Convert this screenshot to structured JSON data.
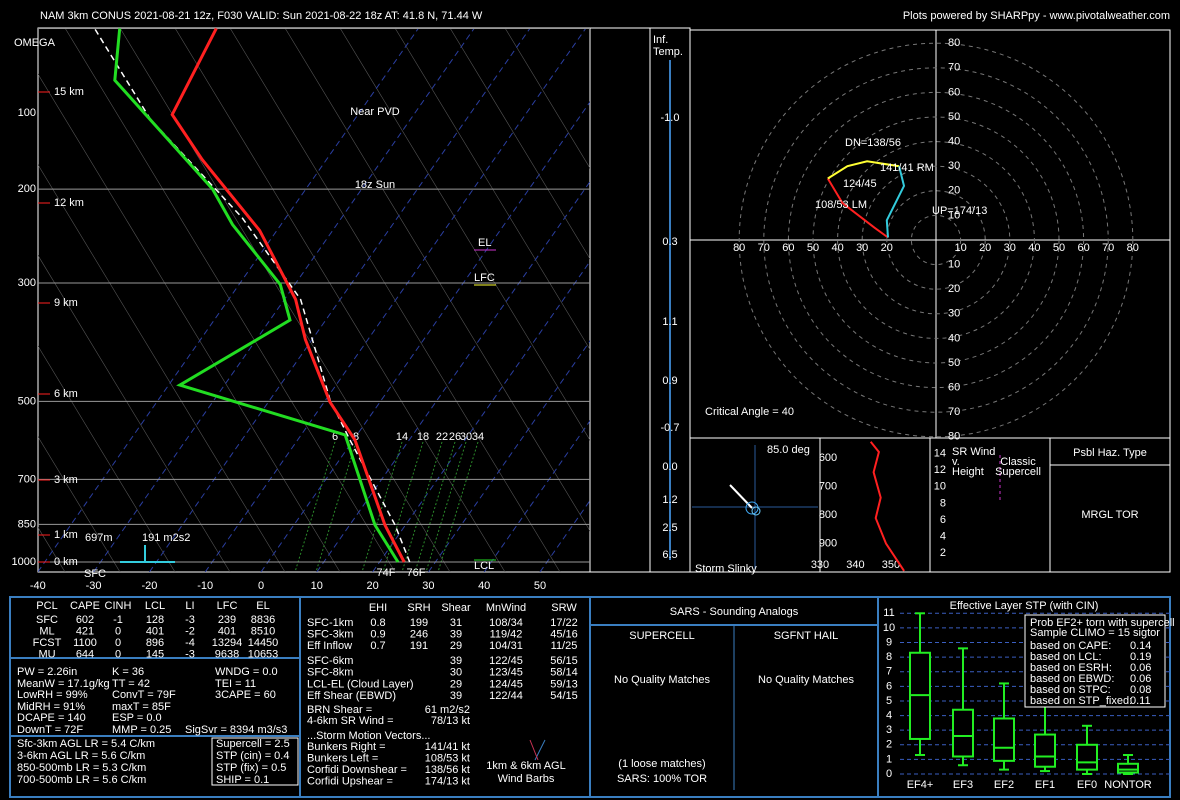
{
  "header": {
    "title": "NAM 3km CONUS 2021-08-21 12z, F030  VALID: Sun 2021-08-22 18z  AT: 41.8 N, 71.44 W",
    "credit": "Plots powered by SHARPpy - www.pivotalweather.com"
  },
  "skewt": {
    "overlay": [
      "Near PVD",
      "18z Sun"
    ],
    "plim": [
      100,
      1000
    ],
    "pressure_ticks": [
      100,
      200,
      300,
      500,
      700,
      850,
      1000
    ],
    "height_labels": [
      "15 km",
      "12 km",
      "9 km",
      "6 km",
      "3 km",
      "1 km",
      "0 km"
    ],
    "temp_ticks": [
      -40,
      -30,
      -20,
      -10,
      0,
      10,
      20,
      30,
      40,
      50
    ],
    "omega": "OMEGA",
    "sfc": "SFC",
    "el": "EL",
    "lfc": "LFC",
    "lcl": "LCL",
    "esrh_depth": "697m",
    "esrh": "191 m2s2",
    "sfc_td": "74F",
    "sfc_t": "76F",
    "mixing_ratio_labels": [
      "6",
      "8",
      "14",
      "18",
      "22",
      "26",
      "30",
      "34"
    ],
    "temperature": {
      "color": "#ff2020",
      "p": [
        1000,
        852,
        591,
        501,
        383,
        322,
        239,
        176,
        145,
        100
      ],
      "t": [
        24.4,
        16.3,
        0.3,
        -9.0,
        -21.2,
        -28.0,
        -43.1,
        -62.3,
        -73.3,
        -76.2
      ]
    },
    "dewpoint": {
      "color": "#22dd22",
      "p": [
        1000,
        852,
        578,
        466,
        352,
        302,
        233,
        200,
        125,
        100
      ],
      "t": [
        23.3,
        14.5,
        -2.1,
        -38.0,
        -26.4,
        -32.6,
        -48.7,
        -56.7,
        -87.9,
        -93.5
      ]
    },
    "parcel": {
      "color": "#ffffff",
      "p": [
        1000,
        852,
        591,
        497,
        322,
        226,
        148,
        100
      ],
      "t": [
        25.4,
        18.1,
        -0.6,
        -9.2,
        -27.1,
        -47.9,
        -76.6,
        -98.0
      ]
    }
  },
  "inferred_temp": {
    "title": [
      "Inf.",
      "Temp."
    ],
    "labels": [
      "-1.0",
      "0.3",
      "1.1",
      "0.9",
      "-0.7",
      "0.0",
      "1.2",
      "2.5",
      "6.5"
    ]
  },
  "hodograph": {
    "ticks": [
      10,
      20,
      30,
      40,
      50,
      60,
      70,
      80
    ],
    "traces": [
      {
        "color": "#ff2020",
        "u": [
          -19.5,
          -25,
          -38,
          -44
        ],
        "v": [
          1,
          5,
          15,
          25
        ]
      },
      {
        "color": "#ffff33",
        "u": [
          -44,
          -36,
          -28,
          -15
        ],
        "v": [
          25,
          30,
          32,
          30
        ]
      },
      {
        "color": "#33ccdd",
        "u": [
          -15,
          -13,
          -20,
          -19.5
        ],
        "v": [
          30,
          22,
          8,
          1
        ]
      }
    ],
    "labels": [
      "DN=138/56",
      "141/41 RM",
      "124/45",
      "108/53 LM",
      "UP=174/13"
    ],
    "critical_angle": "Critical Angle = 40"
  },
  "storm_slinky": {
    "angle": "85.0 deg",
    "title": "Storm Slinky"
  },
  "theta_e": {
    "plim": [
      530,
      1000
    ],
    "xlim": [
      330,
      361
    ],
    "p_ticks": [
      600,
      700,
      800,
      900
    ],
    "x_ticks": [
      330,
      340,
      350
    ],
    "color": "#ff2020",
    "p": [
      543,
      579,
      650,
      739,
      811,
      900,
      996
    ],
    "values": [
      344.3,
      346.6,
      345.1,
      347.1,
      345.7,
      348.6,
      353.7
    ]
  },
  "sr_wind": {
    "title": [
      "SR Wind",
      "v.",
      "Height"
    ],
    "overlay": [
      "Classic",
      "Supercell"
    ],
    "ticks": [
      2,
      4,
      6,
      8,
      10,
      12,
      14
    ]
  },
  "hazard": {
    "title": "Psbl Haz. Type",
    "value": "MRGL TOR"
  },
  "parcel_table": {
    "header": [
      "PCL",
      "CAPE",
      "CINH",
      "LCL",
      "LI",
      "LFC",
      "EL"
    ],
    "rows": [
      [
        "SFC",
        "602",
        "-1",
        "128",
        "-3",
        "239",
        "8836"
      ],
      [
        "ML",
        "421",
        "0",
        "401",
        "-2",
        "401",
        "8510"
      ],
      [
        "FCST",
        "1100",
        "0",
        "896",
        "-4",
        "13294",
        "14450"
      ],
      [
        "MU",
        "644",
        "0",
        "145",
        "-3",
        "9638",
        "10653"
      ]
    ]
  },
  "indices": {
    "col1": [
      "PW = 2.26in",
      "MeanW = 17.1g/kg",
      "LowRH = 99%",
      "MidRH = 91%",
      "DCAPE = 140",
      "DownT = 72F"
    ],
    "col2": [
      "K = 36",
      "TT = 42",
      "ConvT = 79F",
      "maxT = 85F",
      "ESP = 0.0",
      "MMP = 0.25"
    ],
    "col3": [
      "WNDG = 0.0",
      "TEI = 11",
      "3CAPE = 60",
      "SigSvr = 8394 m3/s3"
    ]
  },
  "lapse_rates": [
    "Sfc-3km AGL LR = 5.4 C/km",
    "3-6km AGL LR = 5.6 C/km",
    "850-500mb LR = 5.3 C/km",
    "700-500mb LR = 5.6 C/km"
  ],
  "composites": [
    {
      "text": "Supercell = 2.5",
      "color": "#ffffff"
    },
    {
      "text": "STP (cin) = 0.4",
      "color": "#b8702e"
    },
    {
      "text": "STP (fix) = 0.5",
      "color": "#d08a2e"
    },
    {
      "text": "SHIP = 0.1",
      "color": "#8e44ad"
    }
  ],
  "shear_table": {
    "header": [
      "EHI",
      "SRH",
      "Shear",
      "MnWind",
      "SRW"
    ],
    "rows": [
      [
        "SFC-1km",
        "0.8",
        "199",
        "31",
        "108/34",
        "17/22"
      ],
      [
        "SFC-3km",
        "0.9",
        "246",
        "39",
        "119/42",
        "45/16"
      ],
      [
        "Eff Inflow",
        "0.7",
        "191",
        "29",
        "104/31",
        "11/25"
      ]
    ],
    "rows2": [
      [
        "SFC-6km",
        "39",
        "122/45",
        "56/15"
      ],
      [
        "SFC-8km",
        "30",
        "123/45",
        "58/14"
      ],
      [
        "LCL-EL (Cloud Layer)",
        "29",
        "124/45",
        "59/13"
      ],
      [
        "Eff Shear (EBWD)",
        "39",
        "122/44",
        "54/15"
      ]
    ],
    "extra": [
      [
        "BRN Shear =",
        "61 m2/s2"
      ],
      [
        "4-6km SR Wind =",
        "78/13 kt"
      ]
    ],
    "motion_title": "...Storm Motion Vectors...",
    "motions": [
      {
        "label": "Bunkers Right =",
        "value": "141/41 kt",
        "color": "#3fa9f5"
      },
      {
        "label": "Bunkers Left =",
        "value": "108/53 kt",
        "color": "#ff3333"
      },
      {
        "label": "Corfidi Downshear =",
        "value": "138/56 kt",
        "color": "#ffffff"
      },
      {
        "label": "Corfidi Upshear =",
        "value": "174/13 kt",
        "color": "#ffffff"
      }
    ],
    "barbs": [
      "1km & 6km AGL",
      "Wind Barbs"
    ]
  },
  "sars": {
    "title": "SARS - Sounding Analogs",
    "supercell": "SUPERCELL",
    "hail": "SGFNT HAIL",
    "supercell_result": "No Quality Matches",
    "hail_result": "No Quality Matches",
    "loose": "(1 loose matches)",
    "tor": "SARS: 100% TOR"
  },
  "stp": {
    "title": "Effective Layer STP (with CIN)",
    "ylim": [
      0,
      11.5
    ],
    "yticks": [
      0,
      1,
      2,
      3,
      4,
      5,
      6,
      7,
      8,
      9,
      10,
      11
    ],
    "color": "#22ee22",
    "categories": [
      "EF4+",
      "EF3",
      "EF2",
      "EF1",
      "EF0",
      "NONTOR"
    ],
    "p10": [
      1.3,
      0.6,
      0.3,
      0.2,
      0.0,
      0.0
    ],
    "p25": [
      2.4,
      1.2,
      0.9,
      0.5,
      0.3,
      0.1
    ],
    "median": [
      5.4,
      2.6,
      1.8,
      1.2,
      0.8,
      0.3
    ],
    "p75": [
      8.3,
      4.4,
      3.8,
      2.7,
      2.0,
      0.7
    ],
    "p90": [
      11.0,
      8.6,
      6.2,
      5.0,
      3.3,
      1.3
    ],
    "legend": {
      "title": "Prob EF2+ torn with supercell",
      "sample": "Sample CLIMO = 15 sigtor",
      "rows": [
        {
          "label": "based on CAPE:",
          "value": "0.14",
          "color": "#ffffff"
        },
        {
          "label": "based on LCL:",
          "value": "0.19",
          "color": "#ffffff"
        },
        {
          "label": "based on ESRH:",
          "value": "0.06",
          "color": "#b8702e"
        },
        {
          "label": "based on EBWD:",
          "value": "0.06",
          "color": "#b8702e"
        },
        {
          "label": "based on STPC:",
          "value": "0.08",
          "color": "#b8702e"
        },
        {
          "label": "based on STP_fixed:",
          "value": "0.11",
          "color": "#b8702e"
        }
      ]
    }
  }
}
